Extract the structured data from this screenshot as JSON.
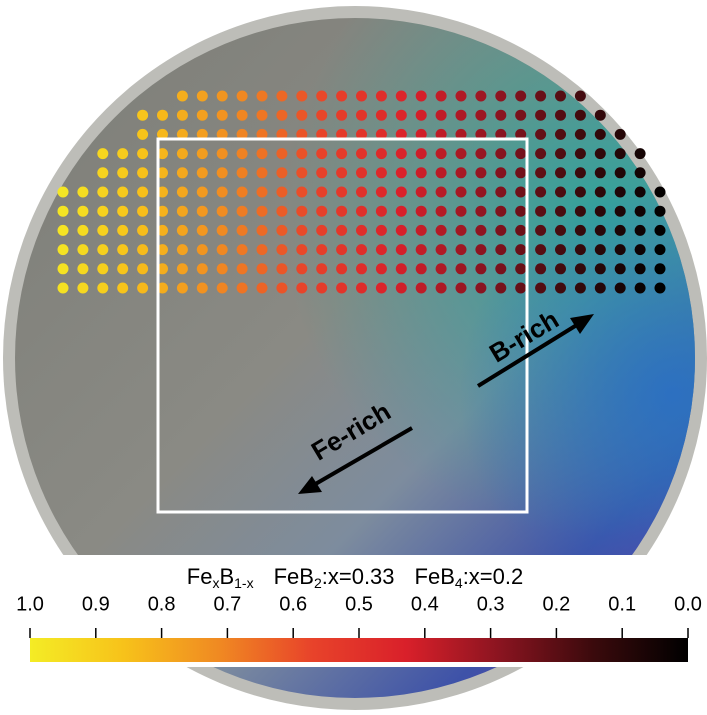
{
  "image": {
    "formula": {
      "a": "Fe",
      "a_sub": "x",
      "b": "B",
      "b_sub": "1-x"
    },
    "phase1": {
      "a": "FeB",
      "a_sub": "2",
      "rest": ":x=0.33"
    },
    "phase2": {
      "a": "FeB",
      "a_sub": "4",
      "rest": ":x=0.2"
    },
    "arrows": [
      "B-rich",
      "Fe-rich"
    ],
    "colorbar": {
      "lim": [
        1.0,
        0.0
      ],
      "ticks": [
        {
          "value": 1.0,
          "label": "1.0"
        },
        0.9,
        0.8,
        0.7,
        0.6,
        0.5,
        0.4,
        0.3,
        0.2,
        0.1,
        {
          "value": 0.0,
          "label": "0.0"
        }
      ],
      "colors": [
        "#f4ec25",
        "#f7c21a",
        "#f08a22",
        "#e8432a",
        "#d9202a",
        "#8a1420",
        "#3a0a0c",
        "#000000"
      ]
    }
  }
}
